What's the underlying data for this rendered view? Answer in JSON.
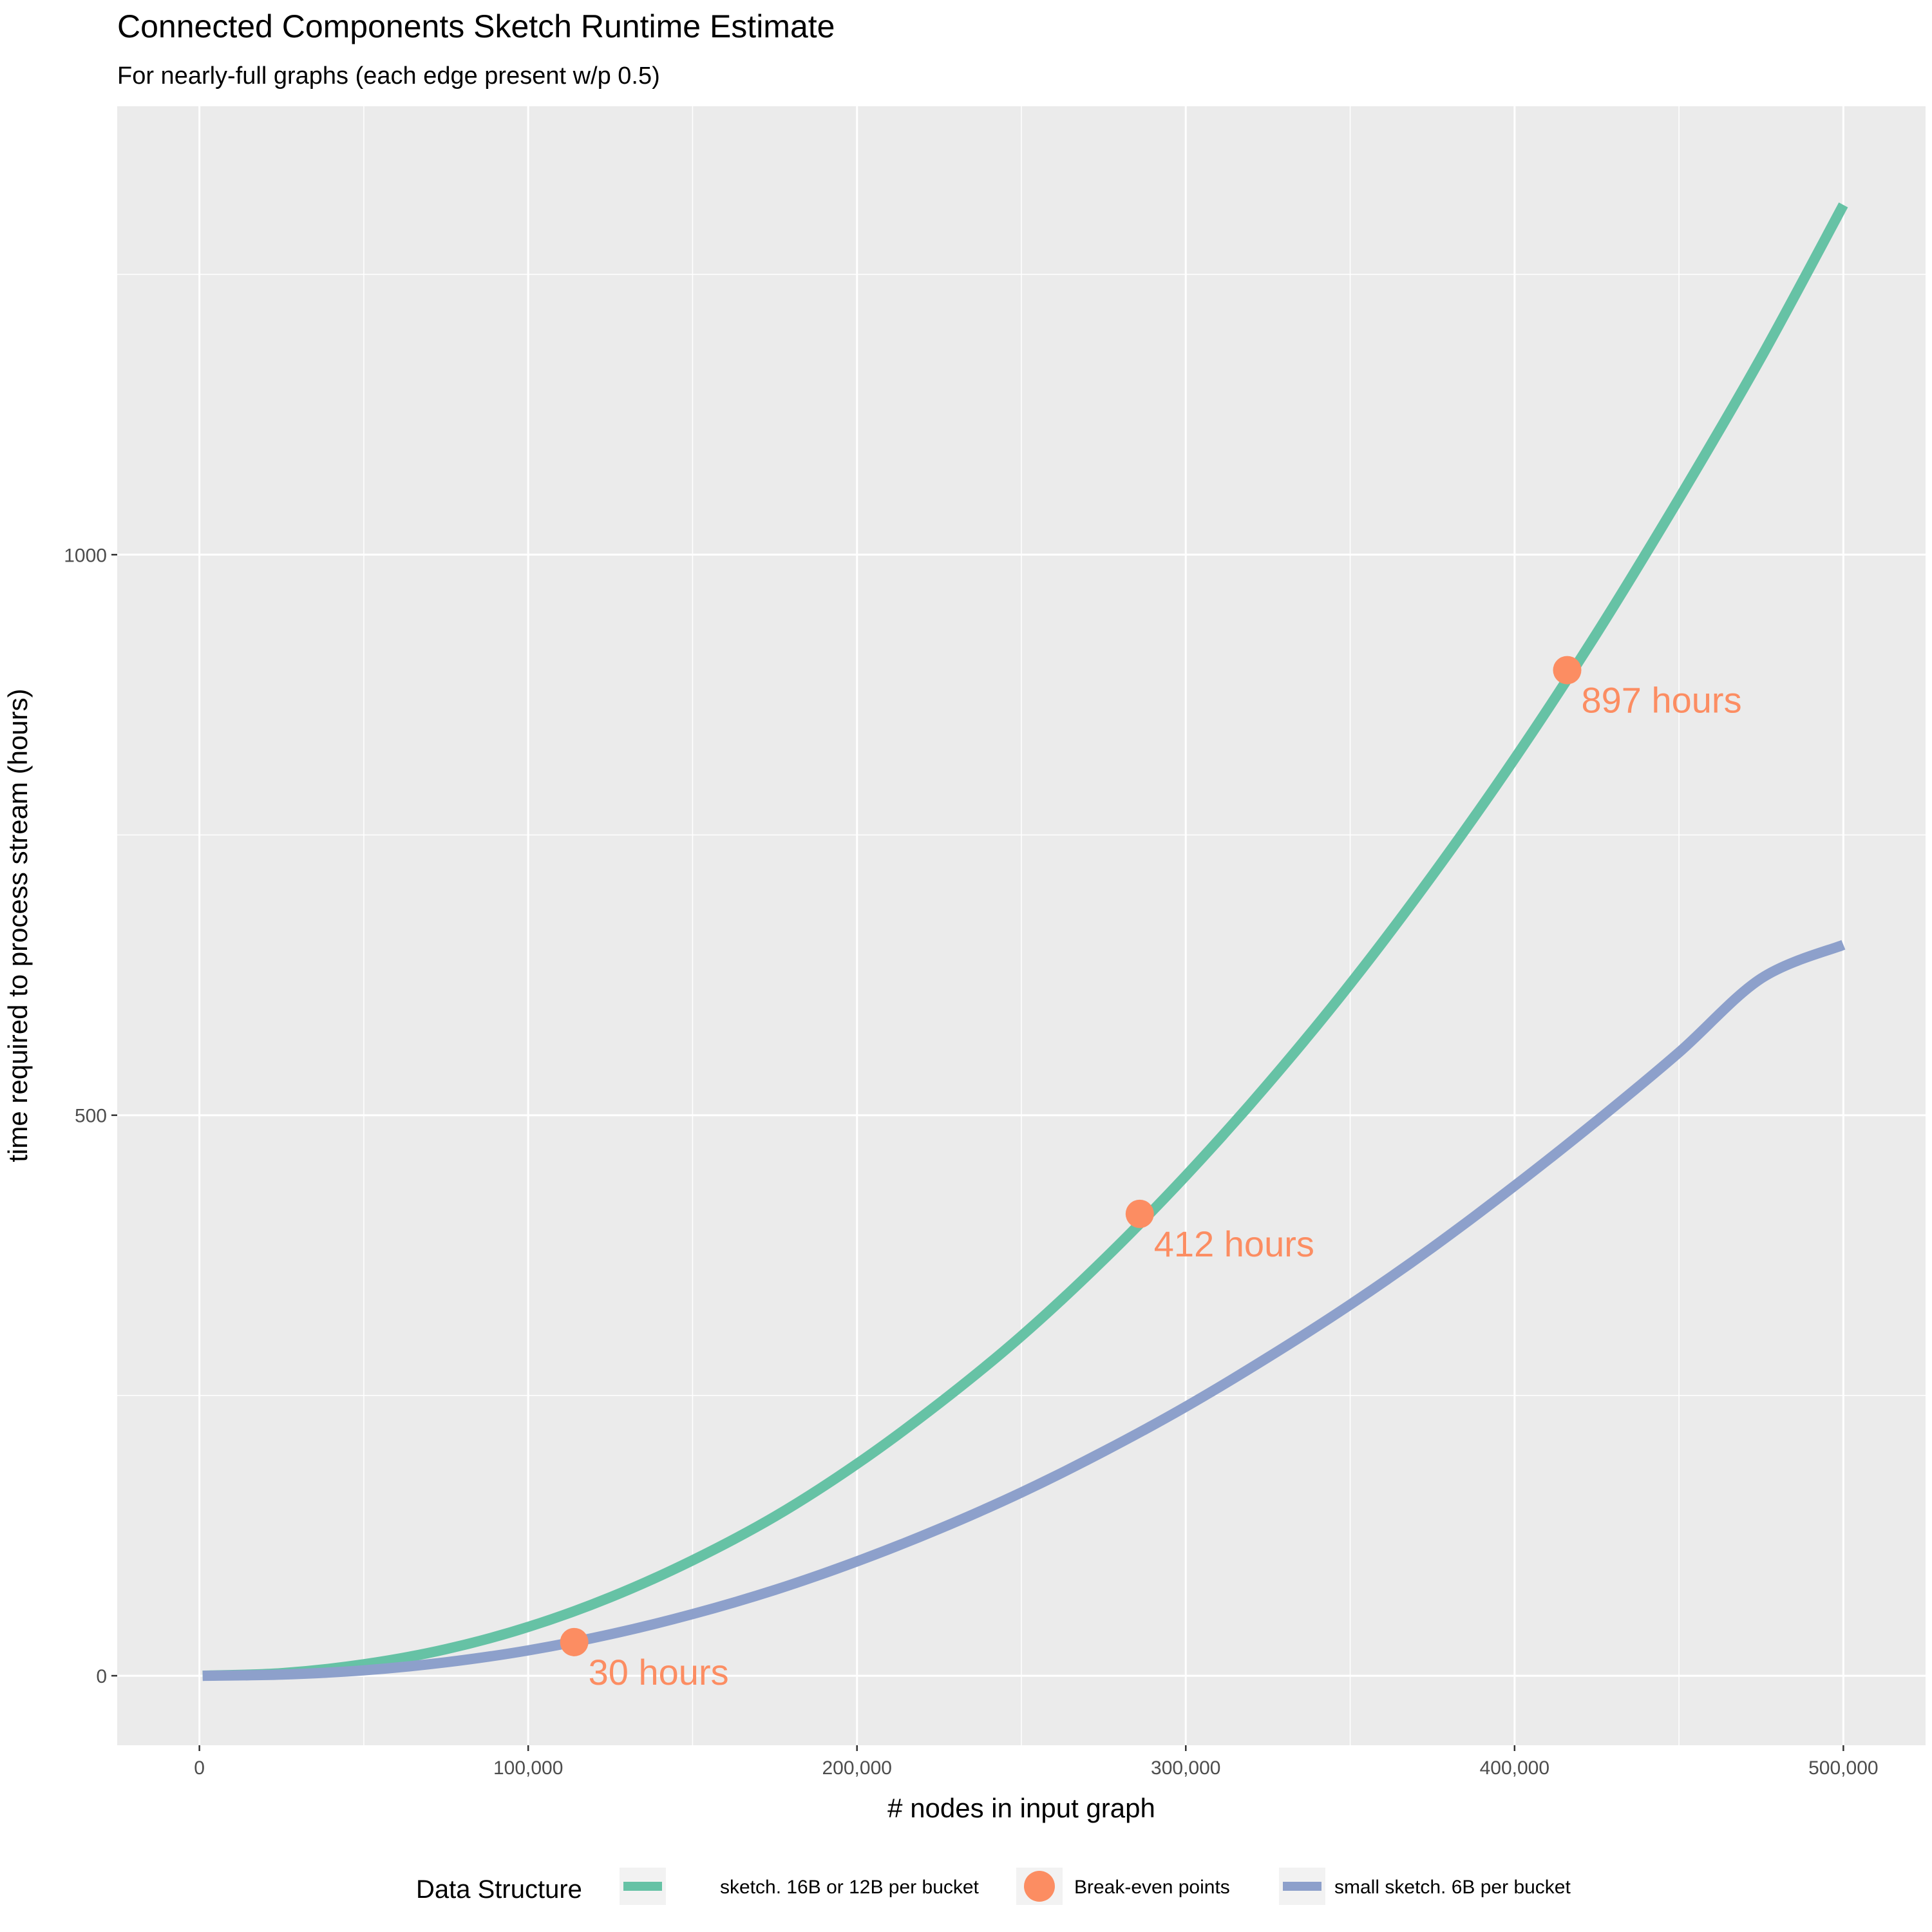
{
  "chart_data": {
    "type": "line",
    "title": "Connected Components Sketch Runtime Estimate",
    "subtitle": "For nearly-full graphs (each edge present w/p 0.5)",
    "xlabel": "# nodes in input graph",
    "ylabel": "time required to process stream (hours)",
    "xlim": [
      -25000,
      525000
    ],
    "ylim": [
      -62,
      1400
    ],
    "x_ticks": [
      0,
      100000,
      200000,
      300000,
      400000,
      500000
    ],
    "x_tick_labels": [
      "0",
      "100,000",
      "200,000",
      "300,000",
      "400,000",
      "500,000"
    ],
    "y_ticks": [
      0,
      500,
      1000
    ],
    "y_tick_labels": [
      "0",
      "500",
      "1000"
    ],
    "grid": true,
    "legend": {
      "title": "Data Structure",
      "position": "bottom",
      "entries": [
        {
          "label": "sketch. 16B or 12B per bucket",
          "kind": "line",
          "color": "#66c2a5"
        },
        {
          "label": "Break-even points",
          "kind": "point",
          "color": "#fc8d62"
        },
        {
          "label": "small sketch. 6B per bucket",
          "kind": "line",
          "color": "#8da0cb"
        }
      ]
    },
    "series": [
      {
        "name": "sketch. 16B or 12B per bucket",
        "color": "#66c2a5",
        "x": [
          1000,
          25000,
          50000,
          75000,
          100000,
          125000,
          150000,
          175000,
          200000,
          225000,
          250000,
          275000,
          300000,
          325000,
          350000,
          375000,
          400000,
          425000,
          450000,
          475000,
          500000
        ],
        "y": [
          0,
          2.3,
          10.2,
          23.7,
          43.5,
          70,
          103,
          142,
          189,
          243,
          303,
          371,
          446,
          528,
          617,
          714,
          818,
          930,
          1050,
          1176,
          1312
        ]
      },
      {
        "name": "small sketch. 6B per bucket",
        "color": "#8da0cb",
        "x": [
          1000,
          25000,
          50000,
          75000,
          100000,
          125000,
          150000,
          175000,
          200000,
          225000,
          250000,
          275000,
          300000,
          325000,
          350000,
          375000,
          400000,
          425000,
          450000,
          475000,
          500000
        ],
        "y": [
          0,
          1,
          4.8,
          12,
          22.6,
          37,
          55,
          76.5,
          102,
          131,
          163.5,
          200,
          240,
          284,
          331,
          382,
          437,
          495,
          556,
          622,
          652
        ]
      },
      {
        "name": "Break-even points",
        "color": "#fc8d62",
        "kind": "point",
        "x": [
          114000,
          286000,
          416000
        ],
        "y": [
          30,
          412,
          897
        ],
        "labels": [
          "30 hours",
          "412 hours",
          "897 hours"
        ]
      }
    ]
  }
}
